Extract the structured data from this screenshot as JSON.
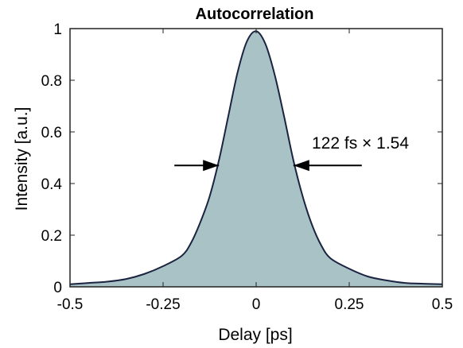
{
  "chart_data": {
    "type": "area",
    "title": "Autocorrelation",
    "xlabel": "Delay [ps]",
    "ylabel": "Intensity [a.u.]",
    "xlim": [
      -0.5,
      0.5
    ],
    "ylim": [
      0,
      1
    ],
    "xticks": [
      -0.5,
      -0.25,
      0,
      0.25,
      0.5
    ],
    "xtick_labels": [
      "-0.5",
      "-0.25",
      "0",
      "0.25",
      "0.5"
    ],
    "yticks": [
      0,
      0.2,
      0.4,
      0.6,
      0.8,
      1
    ],
    "ytick_labels": [
      "0",
      "0.2",
      "0.4",
      "0.6",
      "0.8",
      "1"
    ],
    "grid": false,
    "series": [
      {
        "x": [
          -0.5,
          -0.45,
          -0.4,
          -0.35,
          -0.3,
          -0.25,
          -0.2,
          -0.175,
          -0.15,
          -0.125,
          -0.1,
          -0.075,
          -0.05,
          -0.025,
          0,
          0.025,
          0.05,
          0.075,
          0.1,
          0.125,
          0.15,
          0.175,
          0.2,
          0.25,
          0.3,
          0.35,
          0.4,
          0.45,
          0.5
        ],
        "y": [
          0.01,
          0.015,
          0.02,
          0.03,
          0.05,
          0.08,
          0.12,
          0.17,
          0.25,
          0.35,
          0.49,
          0.66,
          0.83,
          0.95,
          0.99,
          0.94,
          0.82,
          0.66,
          0.49,
          0.35,
          0.24,
          0.16,
          0.11,
          0.07,
          0.04,
          0.025,
          0.015,
          0.012,
          0.01
        ]
      }
    ],
    "fill_color": "#a9c2c5",
    "line_color": "#1a2440",
    "annotation": {
      "text": "122 fs × 1.54",
      "y": 0.47,
      "left_x": -0.1,
      "right_x": 0.1
    }
  }
}
